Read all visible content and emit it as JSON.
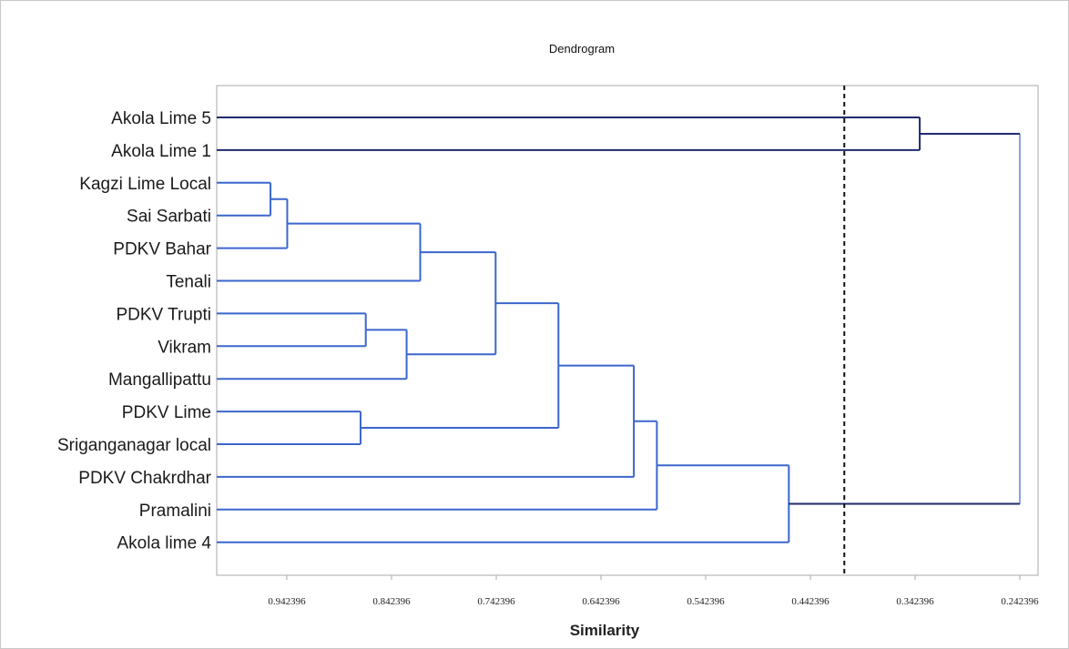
{
  "chart_data": {
    "type": "dendrogram",
    "title": "Dendrogram",
    "xlabel": "Similarity",
    "ylabel": "",
    "x_ticks": [
      "0.942396",
      "0.842396",
      "0.742396",
      "0.642396",
      "0.542396",
      "0.442396",
      "0.342396",
      "0.242396"
    ],
    "xlim": [
      1.01,
      0.242396
    ],
    "cutoff_line": 0.41,
    "leaves": [
      "Akola Lime 5",
      "Akola Lime 1",
      "Kagzi Lime Local",
      "Sai Sarbati",
      "PDKV Bahar",
      "Tenali",
      "PDKV Trupti",
      "Vikram",
      "Mangallipattu",
      "PDKV Lime",
      "Sriganganagar local",
      "PDKV Chakrdhar",
      "Pramalini",
      "Akola lime 4"
    ],
    "merges": [
      {
        "id": "n1",
        "left": "Kagzi Lime Local",
        "right": "Sai Sarbati",
        "similarity": 0.958
      },
      {
        "id": "n2",
        "left": "n1",
        "right": "PDKV Bahar",
        "similarity": 0.942
      },
      {
        "id": "n3",
        "left": "n2",
        "right": "Tenali",
        "similarity": 0.815
      },
      {
        "id": "n4",
        "left": "PDKV Trupti",
        "right": "Vikram",
        "similarity": 0.867
      },
      {
        "id": "n5",
        "left": "n4",
        "right": "Mangallipattu",
        "similarity": 0.828
      },
      {
        "id": "n6",
        "left": "n3",
        "right": "n5",
        "similarity": 0.743
      },
      {
        "id": "n7",
        "left": "PDKV Lime",
        "right": "Sriganganagar local",
        "similarity": 0.872
      },
      {
        "id": "n8",
        "left": "n6",
        "right": "n7",
        "similarity": 0.683
      },
      {
        "id": "n9",
        "left": "n8",
        "right": "PDKV Chakrdhar",
        "similarity": 0.611
      },
      {
        "id": "n10",
        "left": "n9",
        "right": "Pramalini",
        "similarity": 0.589
      },
      {
        "id": "n11",
        "left": "n10",
        "right": "Akola lime 4",
        "similarity": 0.463
      },
      {
        "id": "n12",
        "left": "Akola Lime 5",
        "right": "Akola Lime 1",
        "similarity": 0.338
      },
      {
        "id": "n13",
        "left": "n12",
        "right": "n11",
        "similarity": 0.242396
      }
    ],
    "colors": {
      "outlier_branch": "#1f2a6e",
      "main_branch": "#3a66cc",
      "cutoff": "#111111",
      "frame": "#aaaaaa",
      "outer_border": "#c8c8c8"
    }
  }
}
